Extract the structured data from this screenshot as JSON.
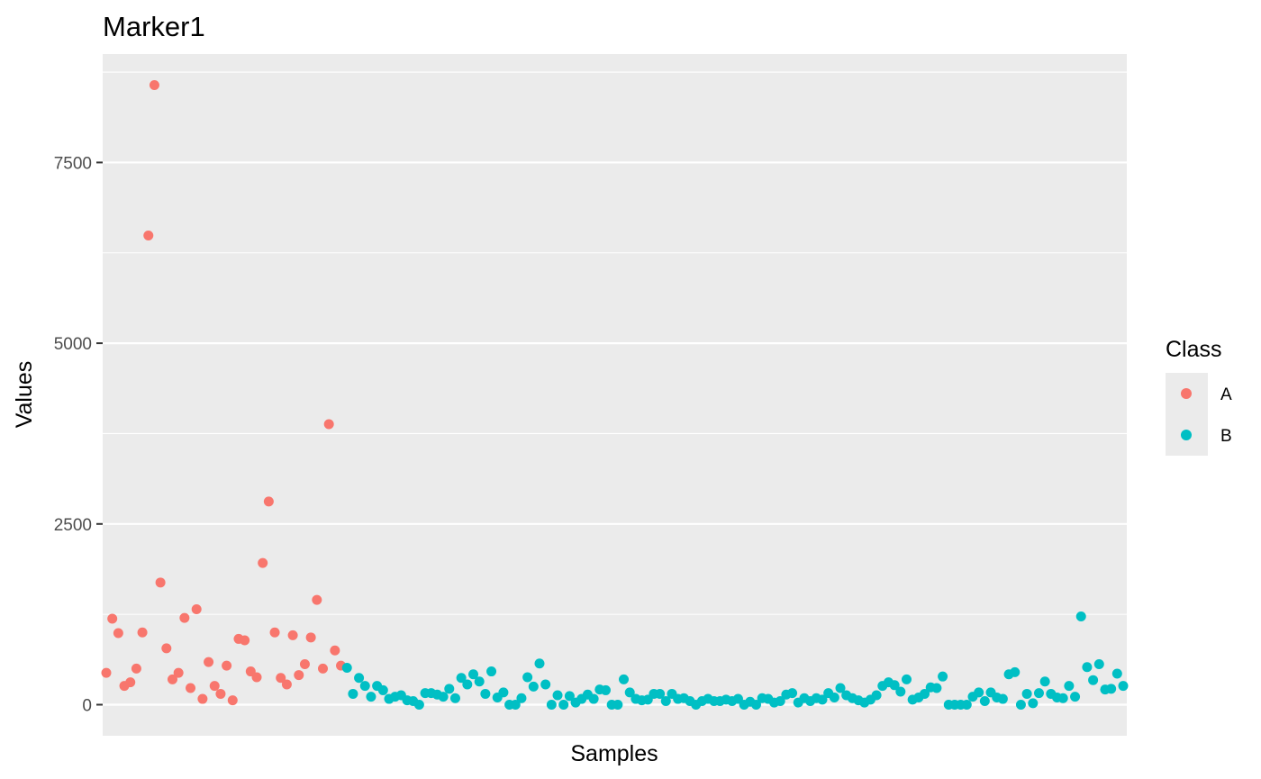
{
  "chart_data": {
    "type": "scatter",
    "title": "Marker1",
    "xlabel": "Samples",
    "ylabel": "Values",
    "ylim": [
      -430,
      9000
    ],
    "y_ticks": [
      0,
      2500,
      5000,
      7500
    ],
    "y_tick_labels": [
      "0",
      "2500",
      "5000",
      "7500"
    ],
    "grid": true,
    "x_tick_labels_shown": false,
    "legend": {
      "title": "Class",
      "placement": "right",
      "entries": [
        {
          "label": "A",
          "color": "#F8766D"
        },
        {
          "label": "B",
          "color": "#00BFC4"
        }
      ]
    },
    "series": [
      {
        "name": "A",
        "color": "#F8766D",
        "x_start": 1,
        "values": [
          440,
          1190,
          990,
          260,
          310,
          500,
          1000,
          6490,
          8570,
          1690,
          780,
          350,
          440,
          1200,
          230,
          1320,
          80,
          590,
          260,
          150,
          540,
          60,
          910,
          890,
          460,
          380,
          1960,
          2810,
          1000,
          370,
          280,
          960,
          410,
          560,
          930,
          1450,
          500,
          3880,
          750,
          540
        ]
      },
      {
        "name": "B",
        "color": "#00BFC4",
        "x_start": 41,
        "values": [
          510,
          150,
          370,
          260,
          110,
          260,
          200,
          80,
          110,
          130,
          60,
          50,
          0,
          160,
          160,
          140,
          110,
          220,
          90,
          370,
          280,
          420,
          320,
          150,
          460,
          100,
          170,
          0,
          0,
          90,
          380,
          250,
          570,
          280,
          0,
          130,
          0,
          120,
          30,
          80,
          140,
          80,
          210,
          200,
          0,
          0,
          350,
          170,
          80,
          60,
          70,
          150,
          150,
          50,
          150,
          80,
          90,
          50,
          0,
          50,
          80,
          50,
          50,
          70,
          50,
          80,
          0,
          40,
          0,
          90,
          80,
          30,
          50,
          140,
          160,
          30,
          90,
          50,
          90,
          70,
          160,
          100,
          230,
          130,
          90,
          60,
          30,
          70,
          130,
          260,
          310,
          270,
          180,
          350,
          70,
          100,
          150,
          240,
          230,
          390,
          0,
          0,
          0,
          0,
          110,
          170,
          50,
          170,
          100,
          80,
          420,
          450,
          0,
          150,
          20,
          160,
          320,
          150,
          100,
          90,
          260,
          110,
          1220,
          520,
          340,
          560,
          210,
          220,
          430,
          260
        ]
      }
    ]
  }
}
